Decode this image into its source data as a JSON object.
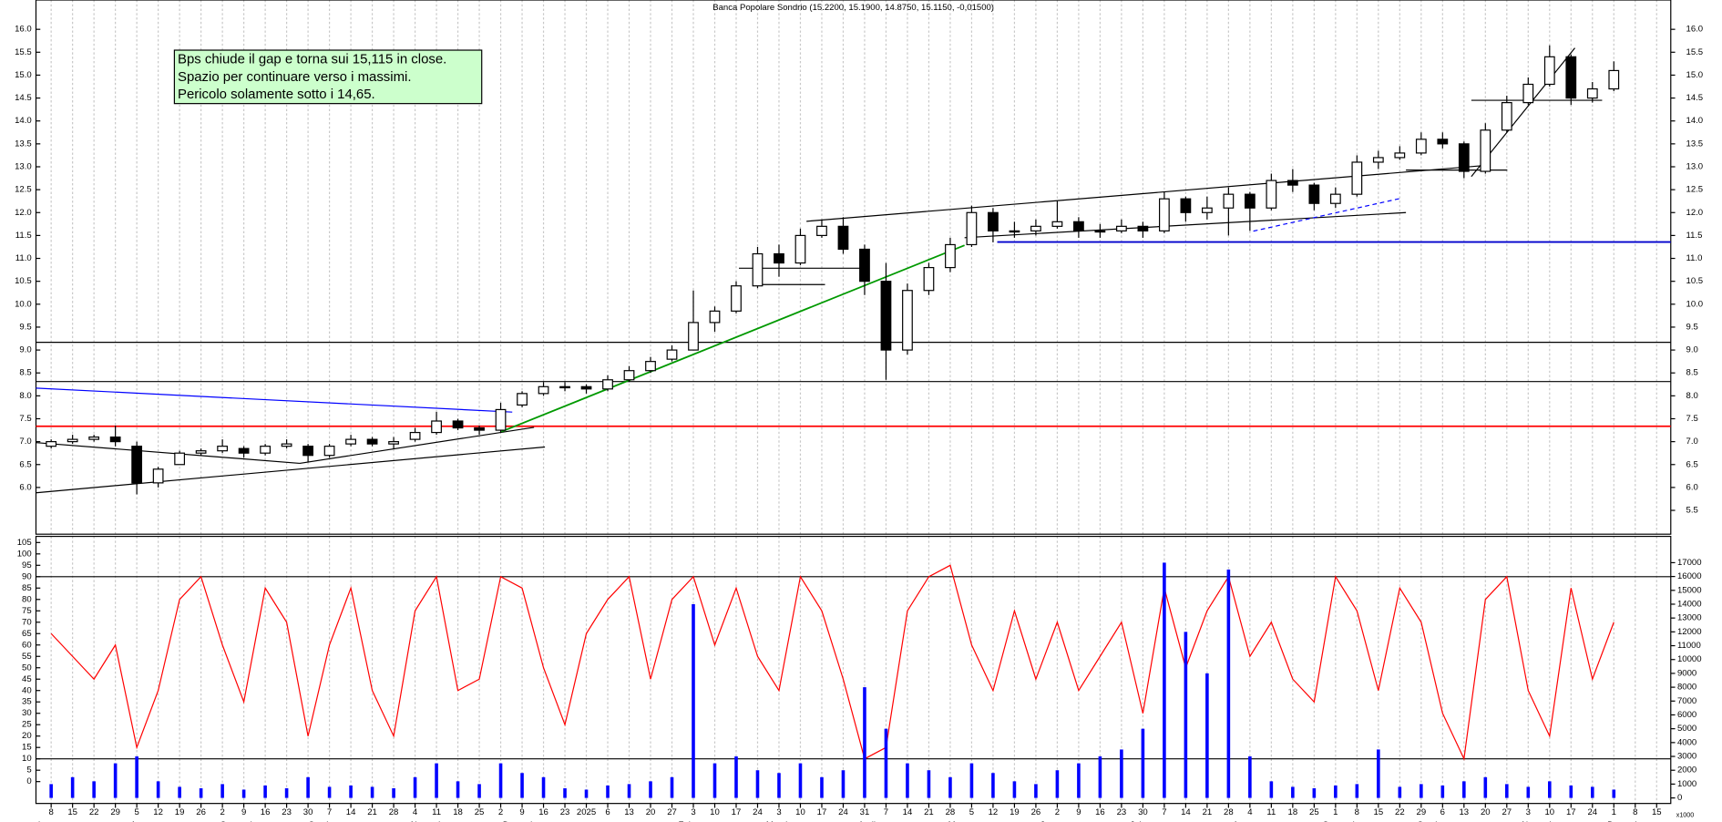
{
  "chart_data": [
    {
      "type": "candlestick",
      "title": "Banca Popolare Sondrio (15.2200, 15.1900, 14.8750, 15.1150, -0,01500)",
      "annotation": [
        "Bps chiude il gap e torna sui 15,115 in close.",
        "Spazio per continuare verso i massimi.",
        "Pericolo solamente sotto i 14,65."
      ],
      "x": [
        0,
        1,
        2,
        3,
        4,
        5,
        6,
        7,
        8,
        9,
        10,
        11,
        12,
        13,
        14,
        15,
        16,
        17,
        18,
        19,
        20,
        21,
        22,
        23,
        24,
        25,
        26,
        27,
        28,
        29,
        30,
        31,
        32,
        33,
        34,
        35,
        36,
        37,
        38,
        39,
        40,
        41,
        42,
        43,
        44,
        45,
        46,
        47,
        48,
        49,
        50,
        51,
        52,
        53,
        54,
        55,
        56,
        57,
        58,
        59,
        60,
        61,
        62,
        63,
        64,
        65,
        66,
        67,
        68,
        69,
        70,
        71,
        72,
        73
      ],
      "open": [
        6.9,
        7.0,
        7.05,
        7.1,
        6.9,
        6.1,
        6.5,
        6.75,
        6.8,
        6.85,
        6.75,
        6.9,
        6.9,
        6.7,
        6.95,
        7.05,
        6.95,
        7.05,
        7.2,
        7.45,
        7.3,
        7.25,
        7.8,
        8.05,
        8.2,
        8.2,
        8.15,
        8.35,
        8.55,
        8.8,
        9.0,
        9.6,
        9.85,
        10.4,
        11.1,
        10.9,
        11.5,
        11.7,
        11.2,
        10.5,
        9.0,
        10.3,
        10.8,
        11.3,
        12.0,
        11.6,
        11.6,
        11.7,
        11.8,
        11.6,
        11.6,
        11.7,
        11.6,
        12.3,
        12.0,
        12.1,
        12.4,
        12.1,
        12.7,
        12.6,
        12.2,
        12.4,
        13.1,
        13.2,
        13.3,
        13.6,
        13.5,
        12.9,
        13.8,
        14.4,
        14.8,
        15.4,
        14.5,
        14.7
      ],
      "high": [
        7.05,
        7.15,
        7.15,
        7.35,
        7.0,
        6.45,
        6.8,
        6.85,
        7.05,
        6.9,
        6.95,
        7.05,
        6.95,
        6.95,
        7.15,
        7.1,
        7.1,
        7.3,
        7.65,
        7.5,
        7.35,
        7.85,
        8.1,
        8.3,
        8.3,
        8.25,
        8.45,
        8.65,
        8.85,
        9.1,
        10.3,
        9.95,
        10.5,
        11.25,
        11.3,
        11.65,
        11.85,
        11.9,
        11.3,
        10.9,
        10.45,
        10.9,
        11.45,
        12.15,
        12.1,
        11.8,
        11.85,
        12.25,
        11.9,
        11.75,
        11.85,
        11.8,
        12.45,
        12.35,
        12.35,
        12.55,
        12.45,
        12.85,
        12.95,
        12.65,
        12.55,
        13.25,
        13.35,
        13.45,
        13.75,
        13.75,
        13.55,
        13.95,
        14.55,
        14.95,
        15.65,
        15.45,
        14.85,
        15.3
      ],
      "low": [
        6.85,
        6.95,
        7.0,
        6.9,
        5.85,
        6.0,
        6.5,
        6.7,
        6.75,
        6.65,
        6.7,
        6.85,
        6.55,
        6.65,
        6.9,
        6.9,
        6.85,
        7.0,
        7.15,
        7.25,
        7.15,
        7.2,
        7.75,
        8.0,
        8.1,
        8.05,
        8.1,
        8.3,
        8.5,
        8.75,
        9.0,
        9.4,
        9.8,
        10.35,
        10.6,
        10.85,
        11.45,
        11.1,
        10.2,
        8.35,
        8.9,
        10.2,
        10.7,
        11.25,
        11.35,
        11.45,
        11.5,
        11.65,
        11.45,
        11.45,
        11.55,
        11.45,
        11.55,
        11.8,
        11.85,
        11.5,
        11.6,
        12.05,
        12.45,
        12.05,
        12.1,
        12.35,
        12.95,
        13.15,
        13.25,
        13.4,
        12.75,
        12.85,
        13.75,
        14.35,
        14.75,
        14.35,
        14.4,
        14.65
      ],
      "close": [
        7.0,
        7.05,
        7.1,
        7.0,
        6.1,
        6.4,
        6.75,
        6.8,
        6.9,
        6.75,
        6.9,
        6.95,
        6.7,
        6.9,
        7.05,
        6.95,
        7.0,
        7.2,
        7.45,
        7.3,
        7.25,
        7.7,
        8.05,
        8.2,
        8.2,
        8.15,
        8.35,
        8.55,
        8.75,
        9.0,
        9.6,
        9.85,
        10.4,
        11.1,
        10.9,
        11.5,
        11.7,
        11.2,
        10.5,
        9.0,
        10.3,
        10.8,
        11.3,
        12.0,
        11.6,
        11.6,
        11.7,
        11.8,
        11.6,
        11.6,
        11.7,
        11.6,
        12.3,
        12.0,
        12.1,
        12.4,
        12.1,
        12.7,
        12.6,
        12.2,
        12.4,
        13.1,
        13.2,
        13.3,
        13.6,
        13.5,
        12.9,
        13.8,
        14.4,
        14.8,
        15.4,
        14.5,
        14.7,
        15.1
      ],
      "xlim": [
        -0.71,
        75.66
      ],
      "ylim": [
        4.98,
        16.64
      ],
      "yticks": [
        {
          "value": 6,
          "label": "6.0"
        },
        6.5,
        {
          "value": 7,
          "label": "7.0"
        },
        7.5,
        {
          "value": 8,
          "label": "8.0"
        },
        8.5,
        {
          "value": 9,
          "label": "9.0"
        },
        9.5,
        {
          "value": 10,
          "label": "10.0"
        },
        10.5,
        {
          "value": 11,
          "label": "11.0"
        },
        11.5,
        {
          "value": 12,
          "label": "12.0"
        },
        12.5,
        {
          "value": 13,
          "label": "13.0"
        },
        13.5,
        {
          "value": 14,
          "label": "14.0"
        },
        14.5,
        {
          "value": 15,
          "label": "15.0"
        },
        15.5,
        {
          "value": 16,
          "label": "16.0"
        }
      ],
      "y2ticks": [
        5.5,
        {
          "value": 6,
          "label": "6.0"
        },
        6.5,
        {
          "value": 7,
          "label": "7.0"
        },
        7.5,
        {
          "value": 8,
          "label": "8.0"
        },
        8.5,
        {
          "value": 9,
          "label": "9.0"
        },
        9.5,
        {
          "value": 10,
          "label": "10.0"
        },
        10.5,
        {
          "value": 11,
          "label": "11.0"
        },
        11.5,
        {
          "value": 12,
          "label": "12.0"
        },
        12.5,
        {
          "value": 13,
          "label": "13.0"
        },
        13.5,
        {
          "value": 14,
          "label": "14.0"
        },
        14.5,
        {
          "value": 15,
          "label": "15.0"
        },
        15.5,
        {
          "value": 16,
          "label": "16.0"
        }
      ]
    },
    {
      "type": "indicator",
      "x": [
        0,
        1,
        2,
        3,
        4,
        5,
        6,
        7,
        8,
        9,
        10,
        11,
        12,
        13,
        14,
        15,
        16,
        17,
        18,
        19,
        20,
        21,
        22,
        23,
        24,
        25,
        26,
        27,
        28,
        29,
        30,
        31,
        32,
        33,
        34,
        35,
        36,
        37,
        38,
        39,
        40,
        41,
        42,
        43,
        44,
        45,
        46,
        47,
        48,
        49,
        50,
        51,
        52,
        53,
        54,
        55,
        56,
        57,
        58,
        59,
        60,
        61,
        62,
        63,
        64,
        65,
        66,
        67,
        68,
        69,
        70,
        71,
        72,
        73
      ],
      "series": [
        {
          "color": "#ff0000",
          "values": [
            65,
            55,
            45,
            60,
            15,
            40,
            80,
            90,
            60,
            35,
            85,
            70,
            20,
            60,
            85,
            40,
            20,
            75,
            90,
            40,
            45,
            90,
            85,
            50,
            25,
            65,
            80,
            90,
            45,
            80,
            90,
            60,
            85,
            55,
            40,
            90,
            75,
            45,
            10,
            15,
            75,
            90,
            95,
            60,
            40,
            75,
            45,
            70,
            40,
            55,
            70,
            30,
            85,
            50,
            75,
            90,
            55,
            70,
            45,
            35,
            90,
            75,
            40,
            85,
            70,
            30,
            10,
            80,
            90,
            40,
            20,
            85,
            45,
            70
          ]
        },
        {
          "color": "#0000ff",
          "axis": "y2",
          "values": [
            1000,
            1500,
            1200,
            2500,
            3000,
            1200,
            800,
            700,
            1000,
            600,
            900,
            700,
            1500,
            800,
            900,
            800,
            700,
            1500,
            2500,
            1200,
            1000,
            2500,
            1800,
            1500,
            700,
            600,
            900,
            1000,
            1200,
            1500,
            14000,
            2500,
            3000,
            2000,
            1800,
            2500,
            1500,
            2000,
            8000,
            5000,
            2500,
            2000,
            1500,
            2500,
            1800,
            1200,
            1000,
            2000,
            2500,
            3000,
            3500,
            5000,
            17000,
            12000,
            9000,
            16500,
            3000,
            1200,
            800,
            700,
            900,
            1000,
            3500,
            800,
            1000,
            900,
            1200,
            1500,
            1000,
            800,
            1200,
            900,
            800,
            600
          ]
        }
      ],
      "levels": [
        10,
        90
      ],
      "ylim": [
        -9.6,
        107.7
      ],
      "yticks": [
        0,
        5,
        10,
        15,
        20,
        25,
        30,
        35,
        40,
        45,
        50,
        55,
        60,
        65,
        70,
        75,
        80,
        85,
        90,
        95,
        100,
        105
      ],
      "y2lim": [
        -400,
        18900
      ],
      "y2ticks": [
        0,
        1000,
        2000,
        3000,
        4000,
        5000,
        6000,
        7000,
        8000,
        9000,
        10000,
        11000,
        12000,
        13000,
        14000,
        15000,
        16000,
        17000
      ],
      "y2unit": "x1000",
      "xticks": [
        {
          "value": 0,
          "label": "8"
        },
        {
          "value": 1,
          "label": "15"
        },
        {
          "value": 2,
          "label": "22"
        },
        {
          "value": 3,
          "label": "29"
        },
        {
          "value": 4,
          "label": "5"
        },
        {
          "value": 5,
          "label": "12"
        },
        {
          "value": 6,
          "label": "19"
        },
        {
          "value": 7,
          "label": "26"
        },
        {
          "value": 8,
          "label": "2"
        },
        {
          "value": 9,
          "label": "9"
        },
        {
          "value": 10,
          "label": "16"
        },
        {
          "value": 11,
          "label": "23"
        },
        {
          "value": 12,
          "label": "30"
        },
        {
          "value": 13,
          "label": "7"
        },
        {
          "value": 14,
          "label": "14"
        },
        {
          "value": 15,
          "label": "21"
        },
        {
          "value": 16,
          "label": "28"
        },
        {
          "value": 17,
          "label": "4"
        },
        {
          "value": 18,
          "label": "11"
        },
        {
          "value": 19,
          "label": "18"
        },
        {
          "value": 20,
          "label": "25"
        },
        {
          "value": 21,
          "label": "2"
        },
        {
          "value": 22,
          "label": "9"
        },
        {
          "value": 23,
          "label": "16"
        },
        {
          "value": 24,
          "label": "23"
        },
        {
          "value": 25,
          "label": "2025"
        },
        {
          "value": 26,
          "label": "6"
        },
        {
          "value": 27,
          "label": "13"
        },
        {
          "value": 28,
          "label": "20"
        },
        {
          "value": 29,
          "label": "27"
        },
        {
          "value": 30,
          "label": "3"
        },
        {
          "value": 31,
          "label": "10"
        },
        {
          "value": 32,
          "label": "17"
        },
        {
          "value": 33,
          "label": "24"
        },
        {
          "value": 34,
          "label": "3"
        },
        {
          "value": 35,
          "label": "10"
        },
        {
          "value": 36,
          "label": "17"
        },
        {
          "value": 37,
          "label": "24"
        },
        {
          "value": 38,
          "label": "31"
        },
        {
          "value": 39,
          "label": "7"
        },
        {
          "value": 40,
          "label": "14"
        },
        {
          "value": 41,
          "label": "21"
        },
        {
          "value": 42,
          "label": "28"
        },
        {
          "value": 43,
          "label": "5"
        },
        {
          "value": 44,
          "label": "12"
        },
        {
          "value": 45,
          "label": "19"
        },
        {
          "value": 46,
          "label": "26"
        },
        {
          "value": 47,
          "label": "2"
        },
        {
          "value": 48,
          "label": "9"
        },
        {
          "value": 49,
          "label": "16"
        },
        {
          "value": 50,
          "label": "23"
        },
        {
          "value": 51,
          "label": "30"
        },
        {
          "value": 52,
          "label": "7"
        },
        {
          "value": 53,
          "label": "14"
        },
        {
          "value": 54,
          "label": "21"
        },
        {
          "value": 55,
          "label": "28"
        },
        {
          "value": 56,
          "label": "4"
        },
        {
          "value": 57,
          "label": "11"
        },
        {
          "value": 58,
          "label": "18"
        },
        {
          "value": 59,
          "label": "25"
        },
        {
          "value": 60,
          "label": "1"
        },
        {
          "value": 61,
          "label": "8"
        },
        {
          "value": 62,
          "label": "15"
        },
        {
          "value": 63,
          "label": "22"
        },
        {
          "value": 64,
          "label": "29"
        },
        {
          "value": 65,
          "label": "6"
        },
        {
          "value": 66,
          "label": "13"
        },
        {
          "value": 67,
          "label": "20"
        },
        {
          "value": 68,
          "label": "27"
        },
        {
          "value": 69,
          "label": "3"
        },
        {
          "value": 70,
          "label": "10"
        },
        {
          "value": 71,
          "label": "17"
        },
        {
          "value": 72,
          "label": "24"
        },
        {
          "value": 73,
          "label": "1"
        },
        {
          "value": 74,
          "label": "8"
        },
        {
          "value": 75,
          "label": "15"
        }
      ],
      "months": [
        {
          "value": -0.6,
          "label": "ly"
        },
        {
          "value": 3.7,
          "label": "August"
        },
        {
          "value": 7.9,
          "label": "September"
        },
        {
          "value": 12.0,
          "label": "October"
        },
        {
          "value": 16.8,
          "label": "November"
        },
        {
          "value": 21.1,
          "label": "December"
        },
        {
          "value": 29.3,
          "label": "February"
        },
        {
          "value": 33.4,
          "label": "March"
        },
        {
          "value": 37.7,
          "label": "April"
        },
        {
          "value": 41.9,
          "label": "May"
        },
        {
          "value": 46.2,
          "label": "June"
        },
        {
          "value": 50.4,
          "label": "July"
        },
        {
          "value": 55.2,
          "label": "August"
        },
        {
          "value": 59.4,
          "label": "September"
        },
        {
          "value": 63.8,
          "label": "October"
        },
        {
          "value": 68.7,
          "label": "November"
        },
        {
          "value": 72.7,
          "label": "December"
        }
      ]
    }
  ]
}
